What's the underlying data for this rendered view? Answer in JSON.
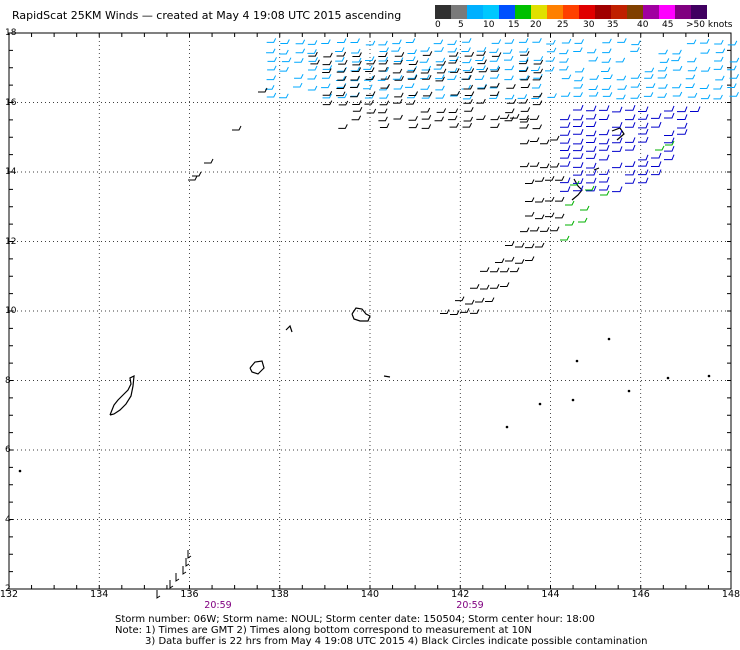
{
  "title": "RapidScat 25KM Winds — created at May  4 19:08 UTC 2015  ascending",
  "colorbar": {
    "labels": [
      "0",
      "5",
      "10",
      "15",
      "20",
      "25",
      "30",
      "35",
      "40",
      "45",
      ">50 knots"
    ],
    "colors": [
      "#303030",
      "#7a7a7a",
      "#00b0ff",
      "#00c8ff",
      "#0050ff",
      "#00c000",
      "#e0e000",
      "#ff8000",
      "#ff4000",
      "#e00000",
      "#a00000",
      "#c02000",
      "#804000",
      "#a000a0",
      "#ff00ff",
      "#800080",
      "#400060"
    ]
  },
  "axes": {
    "x_ticks": [
      "132",
      "134",
      "136",
      "138",
      "140",
      "142",
      "144",
      "146",
      "148"
    ],
    "y_ticks": [
      "18",
      "16",
      "14",
      "12",
      "10",
      "8",
      "6",
      "4",
      "2"
    ]
  },
  "time_labels": [
    "20:59",
    "20:59"
  ],
  "notes": {
    "line1": "Storm number: 06W;  Storm name: NOUL;  Storm center date: 150504;  Storm center hour: 18:00",
    "line2": "Note: 1) Times are GMT  2) Times along bottom correspond to measurement at 10N",
    "line3": "3) Data buffer is 22 hrs from May  4 19:08 UTC 2015  4) Black Circles indicate possible contamination"
  },
  "map": {
    "lon_range": [
      132,
      148
    ],
    "lat_range": [
      2,
      18
    ],
    "grid": true,
    "wind_colors": {
      "light": "#000000",
      "moderate": "#00a8ff",
      "strong": "#0000cc",
      "gale": "#00b000"
    }
  }
}
